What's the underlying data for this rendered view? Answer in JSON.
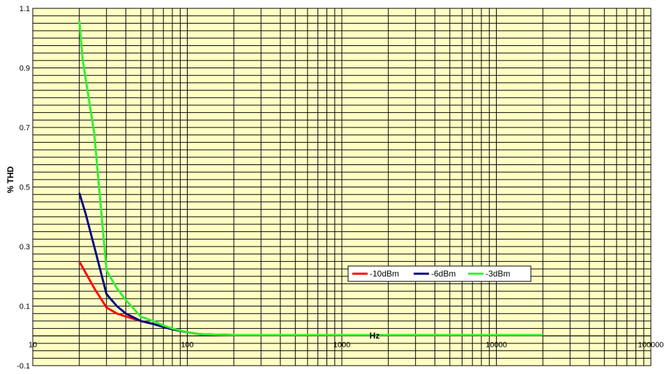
{
  "chart_data": {
    "type": "line",
    "xlabel": "Hz",
    "ylabel": "% THD",
    "x_scale": "log",
    "xlim": [
      10,
      100000
    ],
    "ylim": [
      -0.1,
      1.1
    ],
    "x_ticks": [
      10,
      100,
      1000,
      10000,
      100000
    ],
    "x_tick_labels": [
      "10",
      "100",
      "1000",
      "10000",
      "100000"
    ],
    "y_ticks": [
      -0.1,
      0.1,
      0.3,
      0.5,
      0.7,
      0.9,
      1.1
    ],
    "y_tick_labels": [
      "-0.1",
      "0.1",
      "0.3",
      "0.5",
      "0.7",
      "0.9",
      "1.1"
    ],
    "grid": true,
    "legend_position": "center-right",
    "plot_background": "#ffffc4",
    "series": [
      {
        "name": "-10dBm",
        "color": "#ff0000",
        "x": [
          20,
          25,
          30,
          35,
          40,
          50,
          60,
          70,
          80,
          100,
          120,
          150,
          200,
          500,
          1000,
          2000,
          5000,
          10000,
          20000
        ],
        "y": [
          0.25,
          0.16,
          0.095,
          0.075,
          0.065,
          0.05,
          0.04,
          0.03,
          0.022,
          0.012,
          0.006,
          0.004,
          0.003,
          0.003,
          0.003,
          0.003,
          0.003,
          0.003,
          0.003
        ]
      },
      {
        "name": "-6dBm",
        "color": "#000080",
        "x": [
          20,
          22,
          25,
          30,
          35,
          40,
          50,
          60,
          70,
          80,
          100,
          120,
          150,
          200,
          500,
          1000,
          2000,
          5000,
          10000,
          20000
        ],
        "y": [
          0.48,
          0.41,
          0.3,
          0.14,
          0.1,
          0.075,
          0.05,
          0.04,
          0.03,
          0.022,
          0.012,
          0.006,
          0.004,
          0.003,
          0.003,
          0.003,
          0.003,
          0.003,
          0.003,
          0.003
        ]
      },
      {
        "name": "-3dBm",
        "color": "#33ee33",
        "x": [
          20,
          21,
          25,
          30,
          35,
          40,
          50,
          60,
          70,
          80,
          100,
          120,
          150,
          200,
          500,
          1000,
          2000,
          5000,
          10000,
          20000
        ],
        "y": [
          1.06,
          0.93,
          0.68,
          0.22,
          0.16,
          0.12,
          0.065,
          0.05,
          0.035,
          0.025,
          0.012,
          0.006,
          0.004,
          0.003,
          0.003,
          0.003,
          0.003,
          0.003,
          0.003,
          0.003
        ]
      }
    ]
  }
}
